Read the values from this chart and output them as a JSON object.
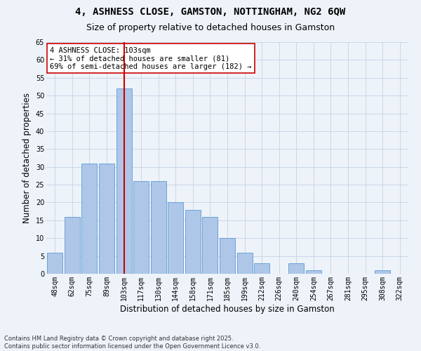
{
  "title": "4, ASHNESS CLOSE, GAMSTON, NOTTINGHAM, NG2 6QW",
  "subtitle": "Size of property relative to detached houses in Gamston",
  "xlabel": "Distribution of detached houses by size in Gamston",
  "ylabel": "Number of detached properties",
  "categories": [
    "48sqm",
    "62sqm",
    "75sqm",
    "89sqm",
    "103sqm",
    "117sqm",
    "130sqm",
    "144sqm",
    "158sqm",
    "171sqm",
    "185sqm",
    "199sqm",
    "212sqm",
    "226sqm",
    "240sqm",
    "254sqm",
    "267sqm",
    "281sqm",
    "295sqm",
    "308sqm",
    "322sqm"
  ],
  "values": [
    6,
    16,
    31,
    31,
    52,
    26,
    26,
    20,
    18,
    16,
    10,
    6,
    3,
    0,
    3,
    1,
    0,
    0,
    0,
    1,
    0
  ],
  "bar_color": "#aec6e8",
  "bar_edge_color": "#5b9bd5",
  "grid_color": "#c8d8e8",
  "background_color": "#eef3f9",
  "vline_x_index": 4,
  "vline_color": "#cc0000",
  "annotation_text": "4 ASHNESS CLOSE: 103sqm\n← 31% of detached houses are smaller (81)\n69% of semi-detached houses are larger (182) →",
  "annotation_box_color": "#ffffff",
  "annotation_box_edge": "#cc0000",
  "ylim": [
    0,
    65
  ],
  "yticks": [
    0,
    5,
    10,
    15,
    20,
    25,
    30,
    35,
    40,
    45,
    50,
    55,
    60,
    65
  ],
  "footer": "Contains HM Land Registry data © Crown copyright and database right 2025.\nContains public sector information licensed under the Open Government Licence v3.0.",
  "title_fontsize": 10,
  "subtitle_fontsize": 9,
  "tick_fontsize": 7,
  "ylabel_fontsize": 8.5,
  "xlabel_fontsize": 8.5,
  "annotation_fontsize": 7.5,
  "footer_fontsize": 6
}
